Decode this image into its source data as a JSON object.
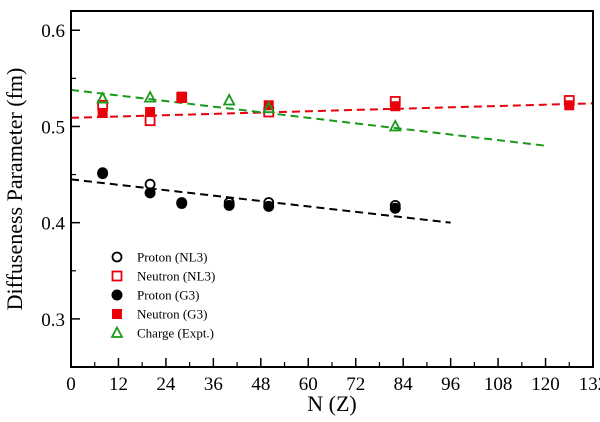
{
  "chart_data": {
    "type": "scatter",
    "xlabel": "N (Z)",
    "ylabel": "Diffuseness Parameter  (fm)",
    "xlim": [
      0,
      132
    ],
    "ylim": [
      0.25,
      0.62
    ],
    "xticks": [
      0,
      12,
      24,
      36,
      48,
      60,
      72,
      84,
      96,
      108,
      120,
      132
    ],
    "yticks": [
      0.3,
      0.4,
      0.5,
      0.6
    ],
    "grid": false,
    "legend_position": "bottom-left",
    "series": [
      {
        "name": "Proton (NL3)",
        "marker": "open-circle",
        "color": "#000000",
        "points": [
          [
            8,
            0.452
          ],
          [
            20,
            0.44
          ],
          [
            28,
            0.421
          ],
          [
            40,
            0.421
          ],
          [
            50,
            0.421
          ],
          [
            82,
            0.418
          ]
        ]
      },
      {
        "name": "Neutron (NL3)",
        "marker": "open-square",
        "color": "#e8000b",
        "points": [
          [
            8,
            0.522
          ],
          [
            20,
            0.506
          ],
          [
            28,
            0.53
          ],
          [
            50,
            0.515
          ],
          [
            82,
            0.526
          ],
          [
            126,
            0.527
          ]
        ]
      },
      {
        "name": "Proton (G3)",
        "marker": "filled-circle",
        "color": "#000000",
        "points": [
          [
            8,
            0.451
          ],
          [
            20,
            0.431
          ],
          [
            28,
            0.42
          ],
          [
            40,
            0.418
          ],
          [
            50,
            0.417
          ],
          [
            82,
            0.415
          ]
        ]
      },
      {
        "name": "Neutron (G3)",
        "marker": "filled-square",
        "color": "#e8000b",
        "points": [
          [
            8,
            0.514
          ],
          [
            20,
            0.515
          ],
          [
            28,
            0.531
          ],
          [
            50,
            0.522
          ],
          [
            82,
            0.521
          ],
          [
            126,
            0.522
          ]
        ]
      },
      {
        "name": "Charge (Expt.)",
        "marker": "open-triangle",
        "color": "#1a9a1a",
        "points": [
          [
            8,
            0.529
          ],
          [
            20,
            0.53
          ],
          [
            40,
            0.527
          ],
          [
            50,
            0.519
          ],
          [
            82,
            0.5
          ]
        ]
      }
    ],
    "fit_lines": [
      {
        "color": "#000000",
        "from": [
          0,
          0.445
        ],
        "to": [
          96,
          0.4
        ]
      },
      {
        "color": "#e8000b",
        "from": [
          0,
          0.509
        ],
        "to": [
          132,
          0.524
        ]
      },
      {
        "color": "#1a9a1a",
        "from": [
          0,
          0.538
        ],
        "to": [
          120,
          0.48
        ]
      }
    ]
  }
}
